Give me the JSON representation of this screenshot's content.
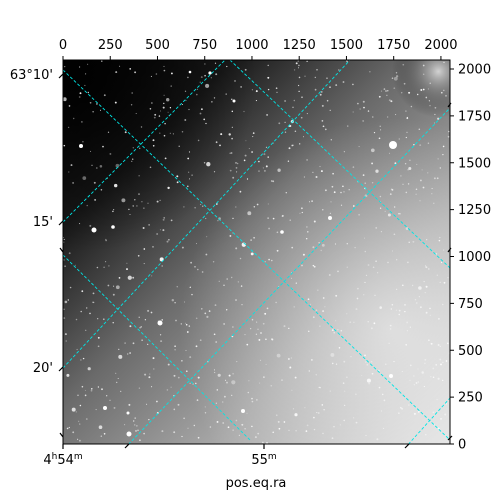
{
  "chart_data": {
    "type": "image",
    "xlabel": "pos.eq.ra",
    "top_axis": {
      "range": [
        0,
        2048
      ],
      "ticks": [
        0,
        250,
        500,
        750,
        1000,
        1250,
        1500,
        1750,
        2000
      ],
      "tick_labels": [
        "0",
        "250",
        "500",
        "750",
        "1000",
        "1250",
        "1500",
        "1750",
        "2000"
      ]
    },
    "right_axis": {
      "range": [
        0,
        2048
      ],
      "ticks": [
        0,
        250,
        500,
        750,
        1000,
        1250,
        1500,
        1750,
        2000
      ],
      "tick_labels": [
        "0",
        "250",
        "500",
        "750",
        "1000",
        "1250",
        "1500",
        "1750",
        "2000"
      ]
    },
    "ra_axis": {
      "tick_labels": [
        {
          "base": "4",
          "unit_h": "h",
          "min": "54",
          "unit_m": "m"
        },
        {
          "base": "55",
          "unit_h": "",
          "min": "",
          "unit_m": "m"
        }
      ]
    },
    "dec_axis": {
      "tick_labels": [
        "63°10'",
        "15'",
        "20'"
      ]
    },
    "grid": true,
    "grid_color": "#00e5e5",
    "image_style": "greyscale sky image, dark upper-left, bright lower-right, scattered stars"
  }
}
